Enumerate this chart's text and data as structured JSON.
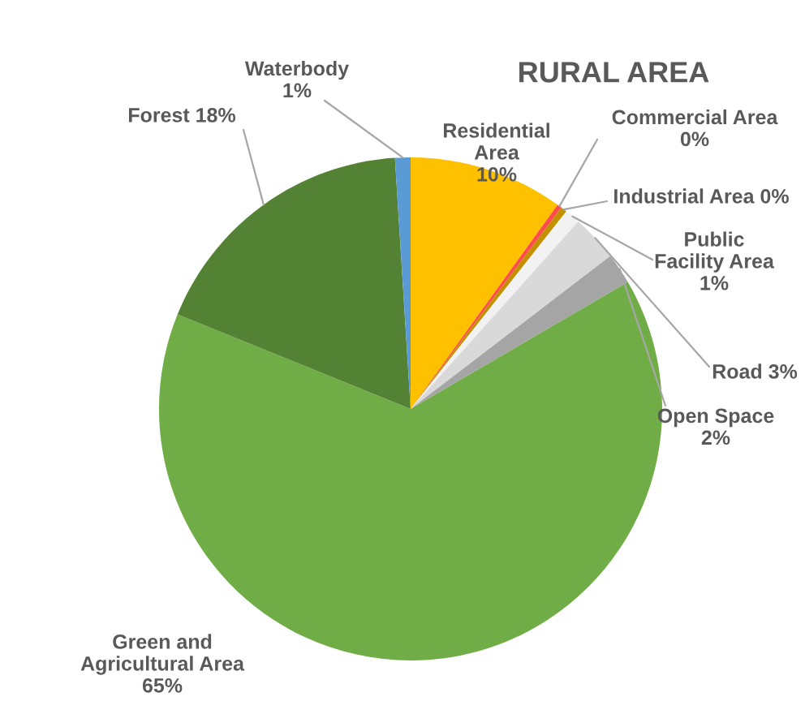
{
  "chart_data": {
    "type": "pie",
    "title": "RURAL AREA",
    "categories": [
      "Residential Area",
      "Commercial Area",
      "Industrial Area",
      "Public Facility Area",
      "Road",
      "Open Space",
      "Green and Agricultural Area",
      "Forest",
      "Waterbody"
    ],
    "values": [
      10,
      0.3,
      0.4,
      1,
      3,
      2,
      65,
      18,
      1
    ],
    "value_labels": [
      "10%",
      "0%",
      "0%",
      "1%",
      "3%",
      "2%",
      "65%",
      "18%",
      "1%"
    ],
    "colors": [
      "#ffc000",
      "#ff4b4b",
      "#c59000",
      "#f2f2f2",
      "#d9d9d9",
      "#a5a5a5",
      "#70ad47",
      "#548235",
      "#5b9bd5"
    ],
    "legend": false
  }
}
